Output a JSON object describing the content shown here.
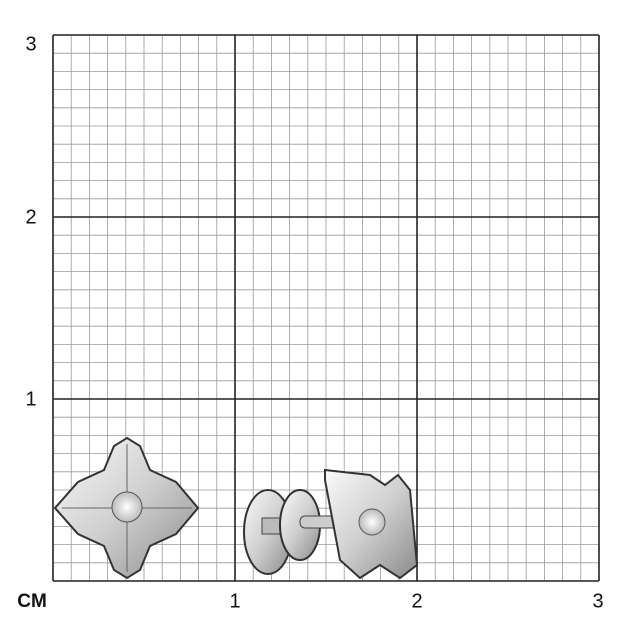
{
  "scale": {
    "unit": "CM",
    "y_labels": [
      "3",
      "2",
      "1"
    ],
    "x_labels": [
      "1",
      "2",
      "3"
    ],
    "range_cm": [
      0,
      3
    ],
    "minor_division_mm": 1
  },
  "colors": {
    "minor_grid": "#9a9a9a",
    "major_grid": "#222222",
    "metal": "#d9d9d9"
  },
  "items": [
    {
      "view": "front",
      "icon": "stud-earring-front"
    },
    {
      "view": "side",
      "icon": "stud-earring-side-with-screw-back"
    }
  ]
}
